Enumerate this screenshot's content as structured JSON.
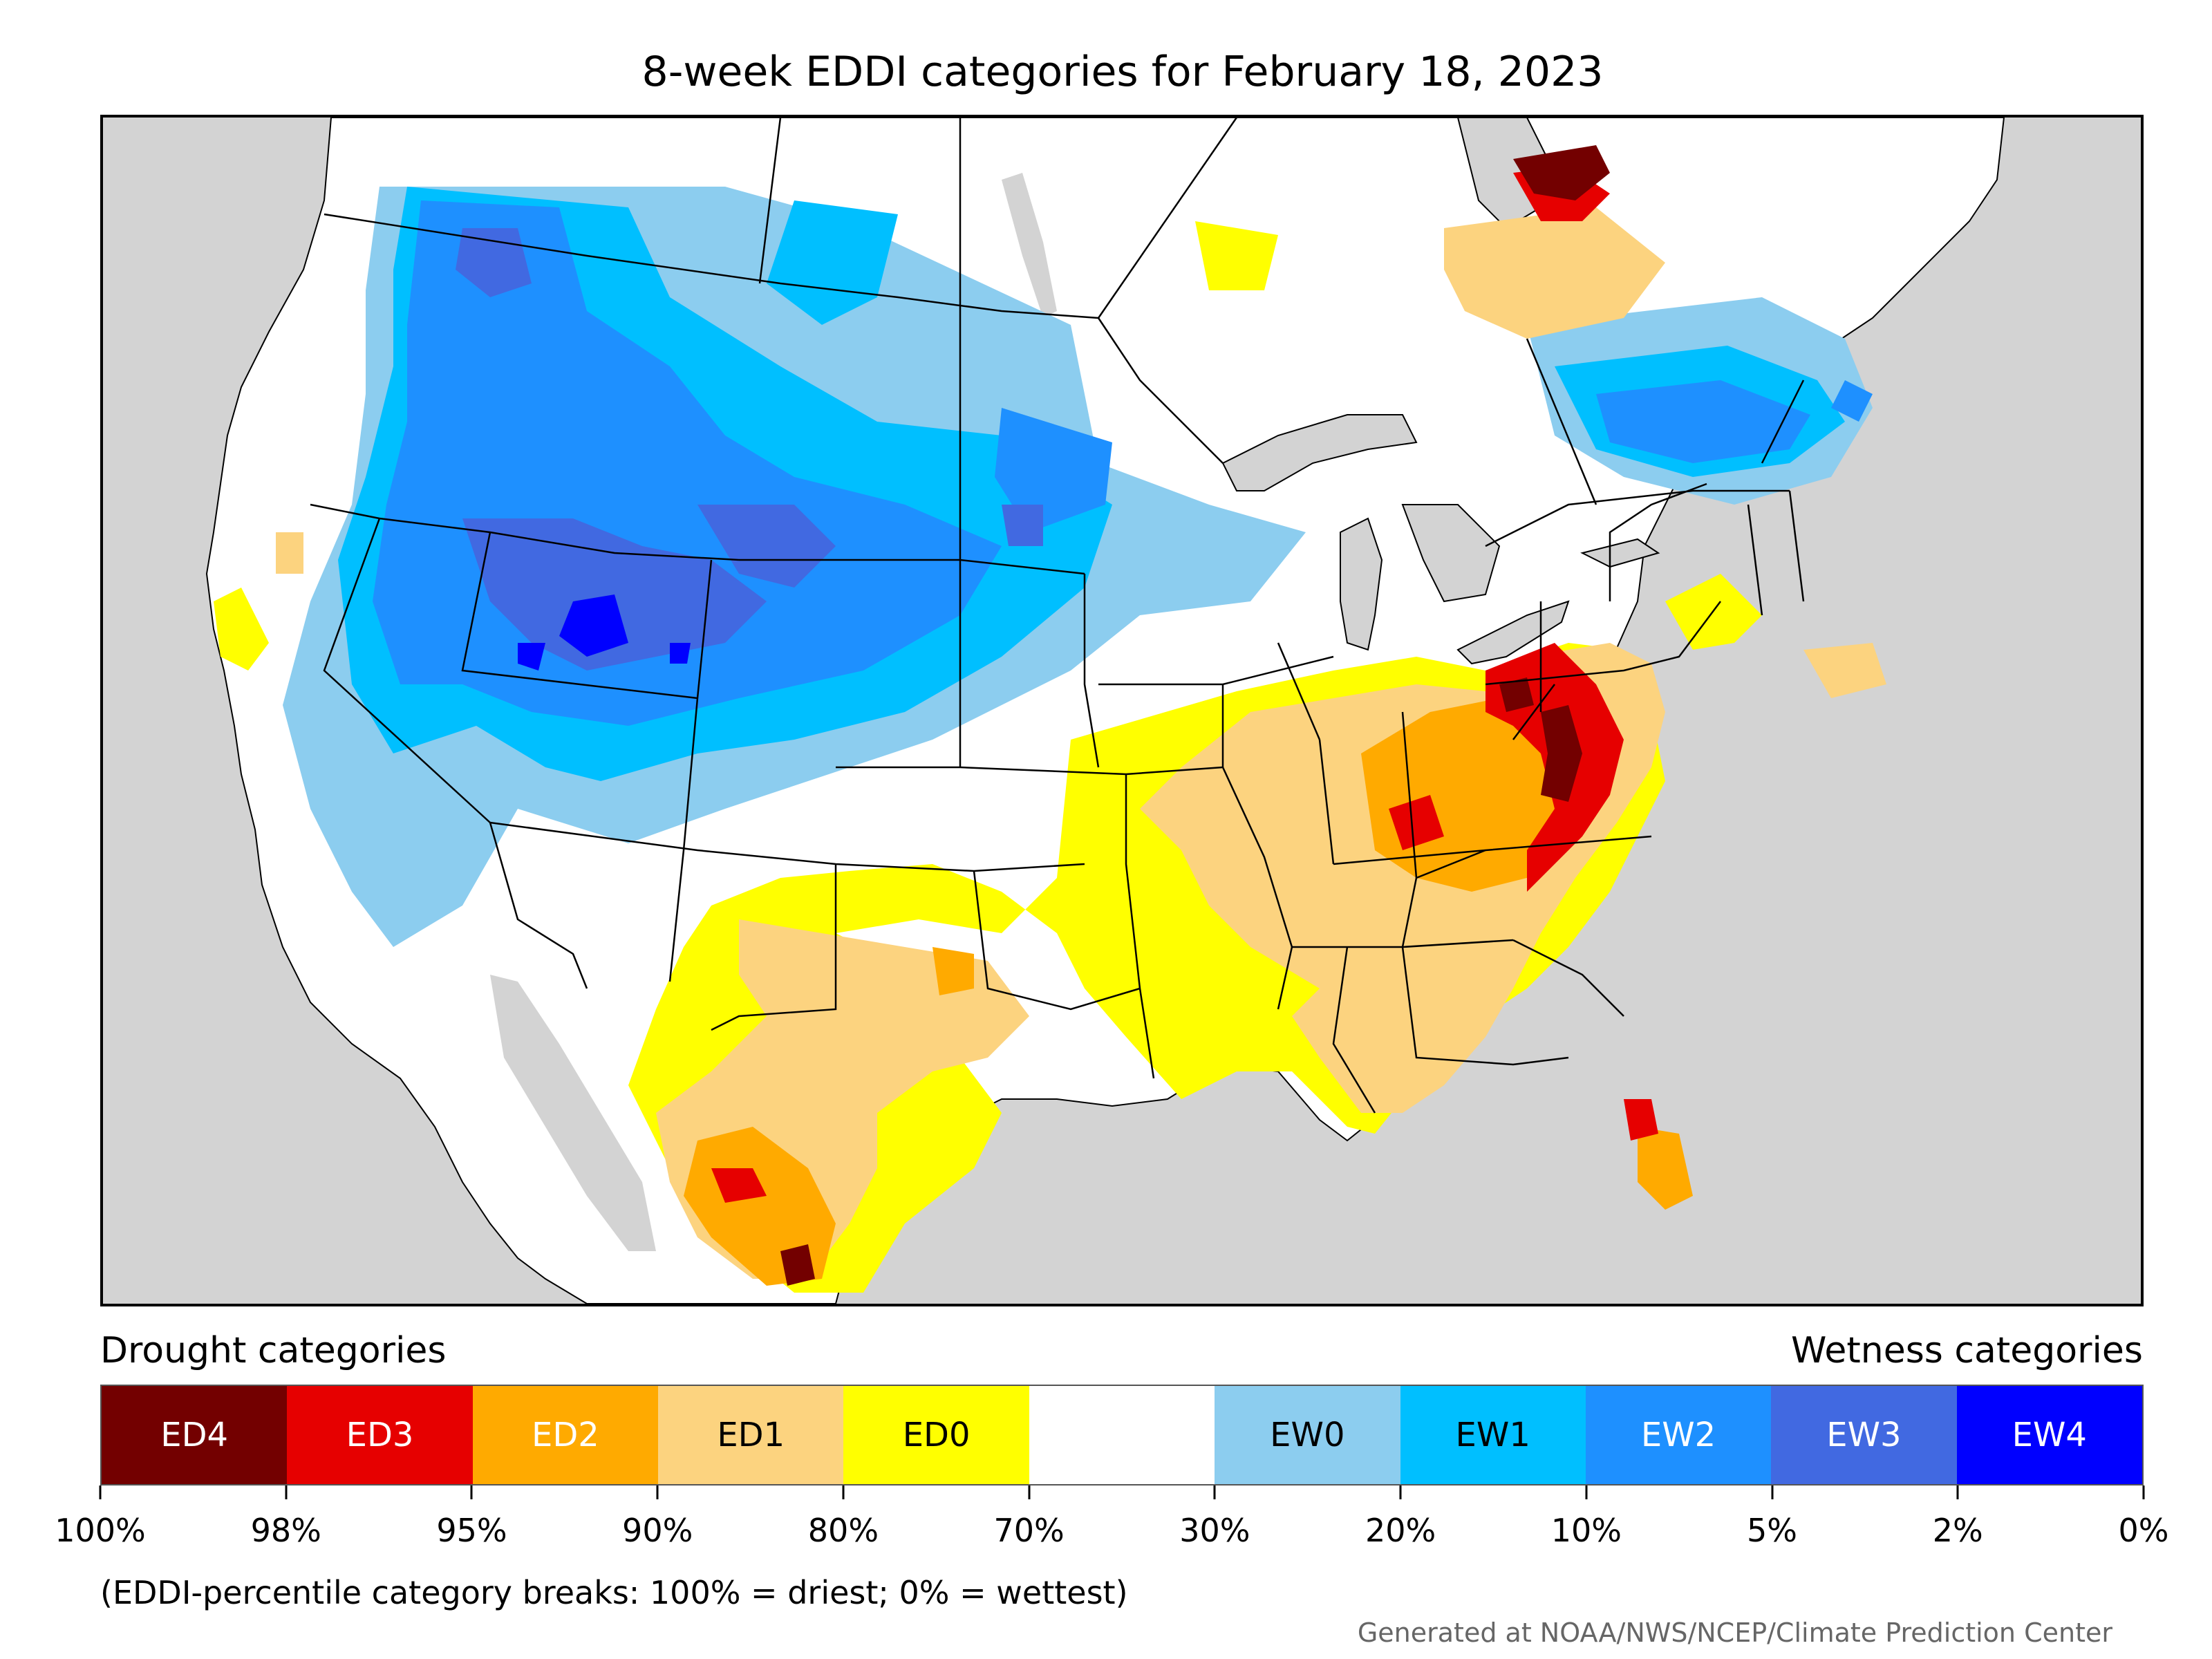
{
  "title": "8-week EDDI categories for February 18, 2023",
  "legend": {
    "drought_heading": "Drought categories",
    "wetness_heading": "Wetness categories",
    "categories": [
      {
        "label": "ED4",
        "color": "#730000",
        "text_color": "#ffffff"
      },
      {
        "label": "ED3",
        "color": "#e60000",
        "text_color": "#ffffff"
      },
      {
        "label": "ED2",
        "color": "#ffaa00",
        "text_color": "#ffffff"
      },
      {
        "label": "ED1",
        "color": "#fcd37f",
        "text_color": "#000000"
      },
      {
        "label": "ED0",
        "color": "#ffff00",
        "text_color": "#000000"
      },
      {
        "label": "",
        "color": "#ffffff",
        "text_color": "#000000"
      },
      {
        "label": "EW0",
        "color": "#8ccdef",
        "text_color": "#000000"
      },
      {
        "label": "EW1",
        "color": "#00bfff",
        "text_color": "#000000"
      },
      {
        "label": "EW2",
        "color": "#1e90ff",
        "text_color": "#ffffff"
      },
      {
        "label": "EW3",
        "color": "#4169e1",
        "text_color": "#ffffff"
      },
      {
        "label": "EW4",
        "color": "#0000ff",
        "text_color": "#ffffff"
      }
    ],
    "tick_labels": [
      "100%",
      "98%",
      "95%",
      "90%",
      "80%",
      "70%",
      "30%",
      "20%",
      "10%",
      "5%",
      "2%",
      "0%"
    ]
  },
  "note": "(EDDI-percentile category breaks: 100% = driest; 0% = wettest)",
  "credit": "Generated at NOAA/NWS/NCEP/Climate Prediction Center",
  "map_colors": {
    "background": "#d3d3d3",
    "land": "#ffffff",
    "boundary": "#000000"
  }
}
